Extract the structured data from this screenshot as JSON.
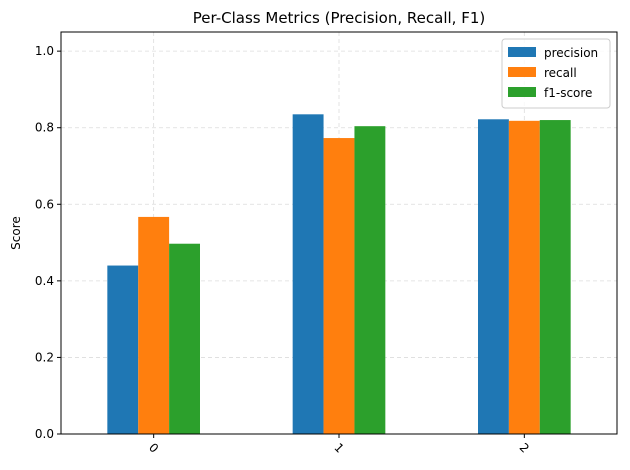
{
  "chart_data": {
    "type": "bar",
    "title": "Per-Class Metrics (Precision, Recall, F1)",
    "xlabel": "",
    "ylabel": "Score",
    "categories": [
      "0",
      "1",
      "2"
    ],
    "series": [
      {
        "name": "precision",
        "color": "#1f77b4",
        "values": [
          0.44,
          0.835,
          0.822
        ]
      },
      {
        "name": "recall",
        "color": "#ff7f0e",
        "values": [
          0.567,
          0.773,
          0.818
        ]
      },
      {
        "name": "f1-score",
        "color": "#2ca02c",
        "values": [
          0.497,
          0.804,
          0.82
        ]
      }
    ],
    "ylim": [
      0,
      1.05
    ],
    "yticks": [
      "0.0",
      "0.2",
      "0.4",
      "0.6",
      "0.8",
      "1.0"
    ],
    "grid": true,
    "legend_position": "top-right",
    "xtick_rotation": 45
  }
}
